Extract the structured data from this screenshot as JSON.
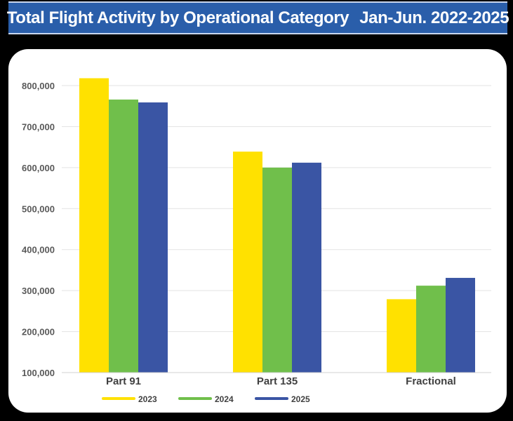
{
  "header": {
    "title_main": "Total Flight Activity by Operational Category",
    "title_range": "Jan-Jun. 2022-2025"
  },
  "chart_data": {
    "type": "bar",
    "title": "Total Flight Activity by Operational Category | Jan-Jun. 2022-2025",
    "categories": [
      "Part 91",
      "Part 135",
      "Fractional"
    ],
    "series": [
      {
        "name": "2023",
        "color": "#ffe100",
        "values": [
          818000,
          639000,
          279000
        ]
      },
      {
        "name": "2024",
        "color": "#70bf4b",
        "values": [
          766000,
          600000,
          312000
        ]
      },
      {
        "name": "2025",
        "color": "#3a55a4",
        "values": [
          759000,
          612000,
          331000
        ]
      }
    ],
    "ylim": [
      100000,
      800000
    ],
    "yticks": [
      100000,
      200000,
      300000,
      400000,
      500000,
      600000,
      700000,
      800000
    ],
    "ytick_labels": [
      "100,000",
      "200,000",
      "300,000",
      "400,000",
      "500,000",
      "600,000",
      "700,000",
      "800,000"
    ],
    "grid": true,
    "legend_position": "bottom",
    "xlabel": "",
    "ylabel": ""
  }
}
